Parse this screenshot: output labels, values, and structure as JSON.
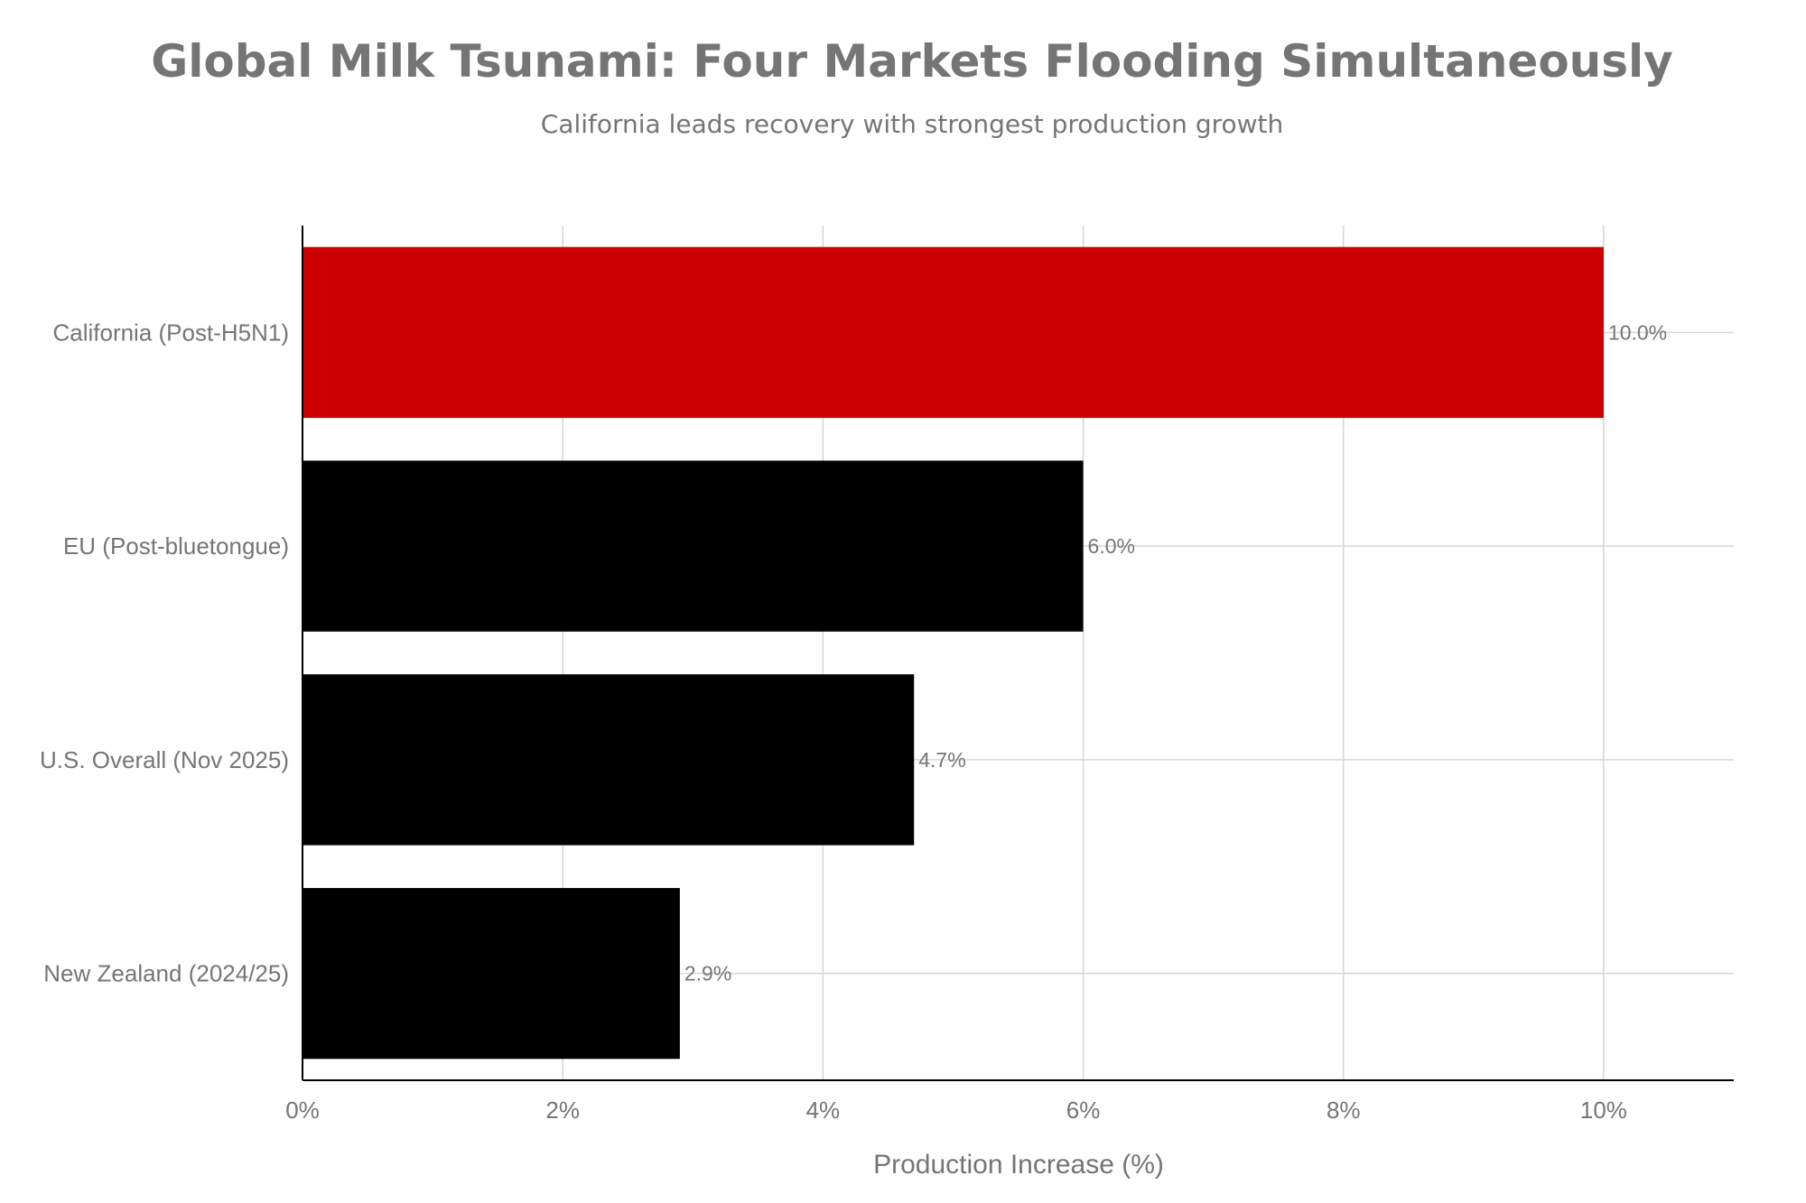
{
  "chart_data": {
    "type": "bar",
    "orientation": "horizontal",
    "title": "Global Milk Tsunami: Four Markets Flooding Simultaneously",
    "subtitle": "California leads recovery with strongest production growth",
    "xlabel": "Production Increase (%)",
    "ylabel": "",
    "categories": [
      "California (Post-H5N1)",
      "EU (Post-bluetongue)",
      "U.S. Overall (Nov 2025)",
      "New Zealand (2024/25)"
    ],
    "values": [
      10.0,
      6.0,
      4.7,
      2.9
    ],
    "value_labels": [
      "10.0%",
      "6.0%",
      "4.7%",
      "2.9%"
    ],
    "xlim": [
      0,
      11
    ],
    "x_ticks": [
      0,
      2,
      4,
      6,
      8,
      10
    ],
    "x_tick_labels": [
      "0%",
      "2%",
      "4%",
      "6%",
      "8%",
      "10%"
    ],
    "bar_colors": [
      "#cc0000",
      "#000000",
      "#000000",
      "#000000"
    ],
    "grid": true,
    "legend": "none"
  }
}
